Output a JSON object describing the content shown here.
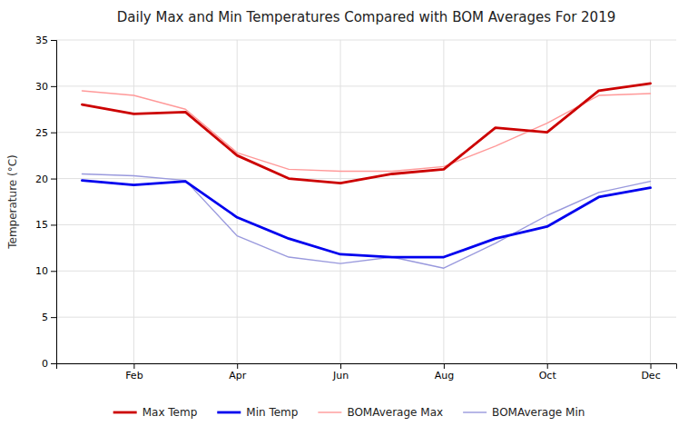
{
  "chart_data": {
    "type": "line",
    "title": "Daily Max and Min Temperatures Compared with BOM Averages For 2019",
    "ylabel": "Temperature (°C)",
    "categories": [
      null,
      "Feb",
      null,
      "Apr",
      null,
      "Jun",
      null,
      "Aug",
      null,
      "Oct",
      null,
      "Dec"
    ],
    "series": [
      {
        "name": "Max Temp",
        "color": "#CC0000",
        "values": [
          28.0,
          27.0,
          27.2,
          22.5,
          20.0,
          19.5,
          20.5,
          21.0,
          25.5,
          25.0,
          29.5,
          30.3
        ]
      },
      {
        "name": "Min Temp",
        "color": "#0000EE",
        "values": [
          19.8,
          19.3,
          19.7,
          15.8,
          13.5,
          11.8,
          11.5,
          11.5,
          13.5,
          14.8,
          18.0,
          19.0
        ]
      },
      {
        "name": "BOMAverage Max",
        "color": "#FF9999",
        "values": [
          29.5,
          29.0,
          27.5,
          22.8,
          21.0,
          20.8,
          20.8,
          21.3,
          23.5,
          26.0,
          29.0,
          29.2
        ]
      },
      {
        "name": "BOMAverage Min",
        "color": "#9999DD",
        "values": [
          20.5,
          20.3,
          19.8,
          13.8,
          11.5,
          10.8,
          11.5,
          10.3,
          13.0,
          16.0,
          18.5,
          19.7
        ]
      }
    ],
    "ylim": [
      0,
      35
    ],
    "yticks": [
      0,
      5,
      10,
      15,
      20,
      25,
      30,
      35
    ],
    "grid": true,
    "legend": "bottom"
  }
}
